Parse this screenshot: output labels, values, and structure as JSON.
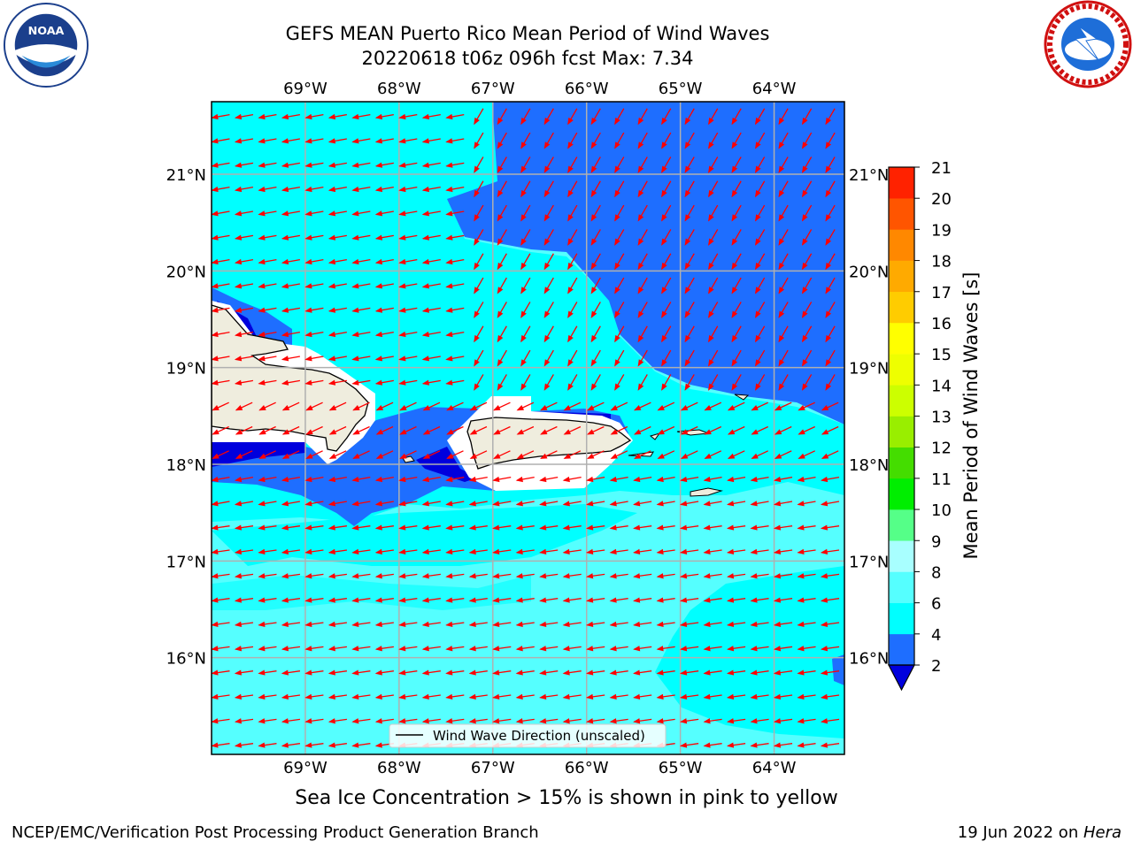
{
  "title": {
    "line1": "GEFS MEAN Puerto Rico Mean Period of Wind Waves",
    "line2": "20220618 t06z 096h fcst   Max: 7.34"
  },
  "logos": {
    "left": "noaa-logo",
    "right": "national-weather-service-logo"
  },
  "map": {
    "lon_ticks": [
      "69°W",
      "68°W",
      "67°W",
      "66°W",
      "65°W",
      "64°W"
    ],
    "lat_ticks": [
      "21°N",
      "20°N",
      "19°N",
      "18°N",
      "17°N",
      "16°N"
    ],
    "lon_range": [
      -70.0,
      -63.25
    ],
    "lat_range": [
      15.0,
      21.75
    ],
    "legend_label": "Wind Wave Direction (unscaled)",
    "arrow_color": "#ff0000",
    "land_color": "#efedde",
    "colors": {
      "2-4": "#1e6eff",
      "4-6": "#00ffff",
      "6-8": "#55ffff",
      "below-2": "#0000dd"
    }
  },
  "colorbar": {
    "label": "Mean Period of Wind Waves [s]",
    "ticks": [
      "2",
      "4",
      "6",
      "8",
      "9",
      "10",
      "11",
      "12",
      "13",
      "14",
      "15",
      "16",
      "17",
      "18",
      "19",
      "20",
      "21"
    ],
    "colors": [
      "#1e6eff",
      "#00ffff",
      "#55ffff",
      "#a8ffff",
      "#55ff88",
      "#00ee00",
      "#44dd00",
      "#99ee00",
      "#ccff00",
      "#eeff00",
      "#ffff00",
      "#ffcc00",
      "#ffaa00",
      "#ff8800",
      "#ff5500",
      "#ff2200"
    ],
    "extend_color": "#0000dd"
  },
  "ice_note": "Sea Ice Concentration > 15% is shown in pink to yellow",
  "footer": {
    "left": "NCEP/EMC/Verification Post Processing Product Generation Branch",
    "date": "19 Jun 2022 on ",
    "machine": "Hera"
  }
}
